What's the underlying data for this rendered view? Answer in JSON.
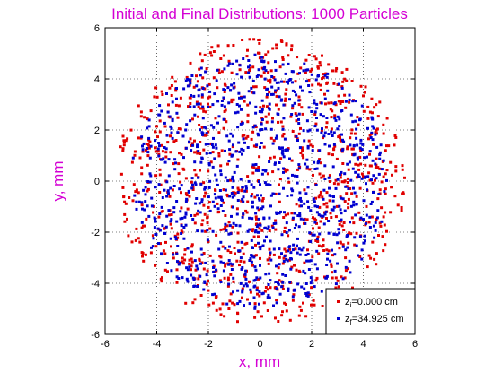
{
  "chart_data": {
    "type": "scatter",
    "title": "Initial and Final Distributions: 1000 Particles",
    "xlabel": "x, mm",
    "ylabel": "y, mm",
    "xlim": [
      -6,
      6
    ],
    "ylim": [
      -6,
      6
    ],
    "xticks": [
      -6,
      -4,
      -2,
      0,
      2,
      4,
      6
    ],
    "yticks": [
      -6,
      -4,
      -2,
      0,
      2,
      4,
      6
    ],
    "grid": true,
    "legend_position": "bottom-right",
    "title_color": "#d400d4",
    "label_color": "#d400d4",
    "series": [
      {
        "name": "z_i=0.000 cm",
        "legend_main": "z",
        "legend_sub": "i",
        "legend_rest": "=0.000 cm",
        "color": "#e00000",
        "marker": "dot",
        "count": 1000,
        "distribution": "uniform disk",
        "radius": 5.6
      },
      {
        "name": "z_f=34.925 cm",
        "legend_main": "z",
        "legend_sub": "f",
        "legend_rest": "=34.925 cm",
        "color": "#0000d0",
        "marker": "dot",
        "count": 1000,
        "distribution": "uniform disk",
        "radius": 5.0
      }
    ]
  }
}
